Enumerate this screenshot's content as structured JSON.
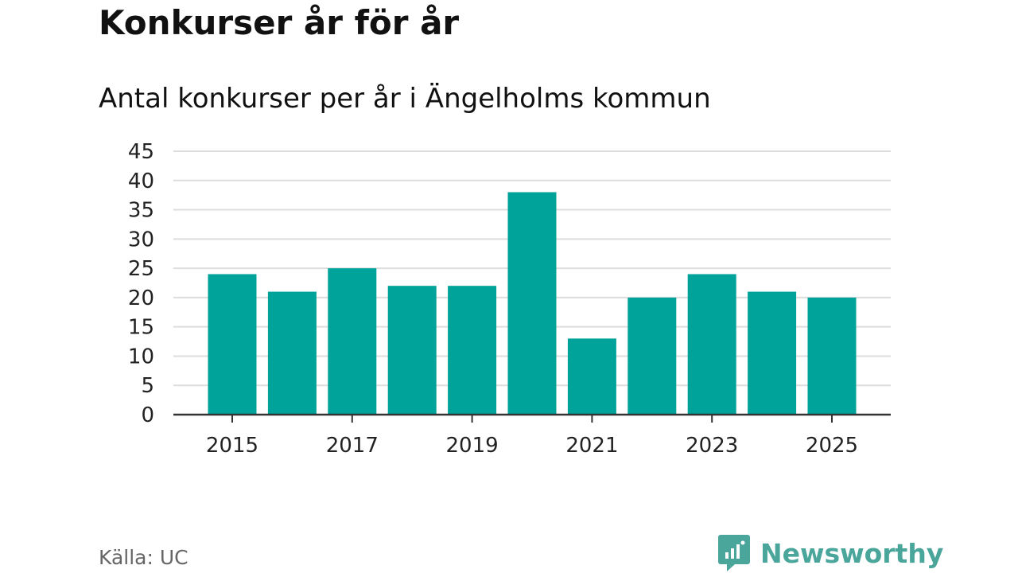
{
  "title": "Konkurser år för år",
  "subtitle": "Antal konkurser per år i Ängelholms kommun",
  "source": "Källa: UC",
  "brand": {
    "name": "Newsworthy",
    "icon": "newsworthy-logo-icon",
    "color": "#4aa59b"
  },
  "colors": {
    "bar": "#00a39a",
    "grid": "#dddddd",
    "axis": "#333333",
    "tick_text": "#222222"
  },
  "chart_data": {
    "type": "bar",
    "title": "Konkurser år för år",
    "subtitle": "Antal konkurser per år i Ängelholms kommun",
    "categories": [
      "2015",
      "2016",
      "2017",
      "2018",
      "2019",
      "2020",
      "2021",
      "2022",
      "2023",
      "2024",
      "2025"
    ],
    "values": [
      24,
      21,
      25,
      22,
      22,
      38,
      13,
      20,
      24,
      21,
      20
    ],
    "x_tick_labels": [
      "2015",
      "2017",
      "2019",
      "2021",
      "2023",
      "2025"
    ],
    "y_ticks": [
      0,
      5,
      10,
      15,
      20,
      25,
      30,
      35,
      40,
      45
    ],
    "ylim": [
      0,
      45
    ],
    "xlabel": "",
    "ylabel": "",
    "grid": true,
    "legend": "none"
  }
}
